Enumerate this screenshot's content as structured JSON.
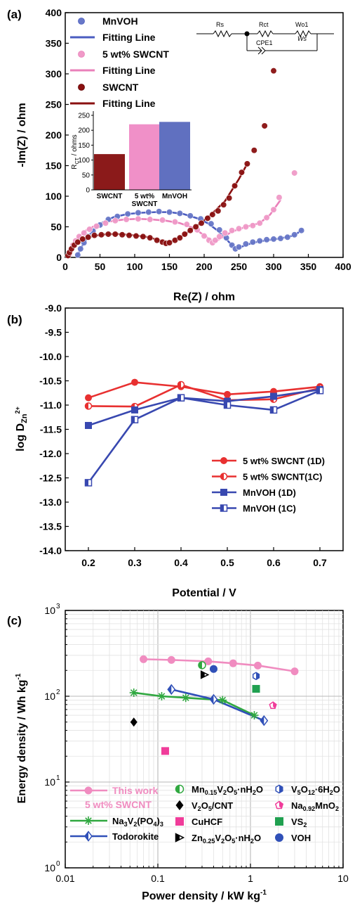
{
  "panels": {
    "a": {
      "label": "(a)"
    },
    "b": {
      "label": "(b)"
    },
    "c": {
      "label": "(c)"
    }
  },
  "circuit": {
    "labels": [
      "Rs",
      "Rct",
      "Wo1",
      "CPE1",
      "Ws"
    ]
  },
  "chart_data": [
    {
      "id": "a",
      "type": "scatter",
      "xlabel": "Re(Z) / ohm",
      "ylabel": "-Im(Z) / ohm",
      "xlim": [
        0,
        400
      ],
      "ylim": [
        0,
        400
      ],
      "xticks": [
        0,
        50,
        100,
        150,
        200,
        250,
        300,
        350,
        400
      ],
      "yticks": [
        0,
        50,
        100,
        150,
        200,
        250,
        300,
        350,
        400
      ],
      "legend": {
        "placement": "top-left",
        "entries": [
          "MnVOH",
          "Fitting Line",
          "5 wt% SWCNT",
          "Fitting Line",
          "SWCNT",
          "Fitting Line"
        ]
      },
      "series": [
        {
          "name": "MnVOH",
          "color": "#6878c8",
          "x": [
            18,
            22,
            27,
            33,
            40,
            50,
            62,
            75,
            90,
            105,
            120,
            135,
            150,
            165,
            180,
            195,
            210,
            222,
            232,
            240,
            245,
            250,
            260,
            270,
            280,
            290,
            300,
            310,
            320,
            330,
            340
          ],
          "y": [
            4,
            14,
            24,
            34,
            43,
            53,
            62,
            67,
            71,
            73,
            74,
            75,
            74,
            72,
            68,
            63,
            55,
            45,
            32,
            20,
            14,
            17,
            22,
            25,
            27,
            29,
            30,
            31,
            33,
            37,
            44
          ]
        },
        {
          "name": "MnVOH Fitting Line",
          "color": "#4a5cc0",
          "line": true,
          "x": [
            16,
            24,
            32,
            42,
            55,
            70,
            90,
            110,
            130,
            150,
            170,
            190,
            205,
            218,
            230,
            240,
            246,
            255,
            270,
            290,
            310,
            330,
            342
          ],
          "y": [
            0,
            18,
            33,
            46,
            58,
            66,
            71,
            73,
            74,
            74,
            71,
            64,
            56,
            45,
            32,
            20,
            15,
            18,
            24,
            28,
            31,
            36,
            46
          ]
        },
        {
          "name": "5 wt% SWCNT",
          "color": "#f09ac8",
          "x": [
            6,
            8,
            11,
            15,
            20,
            27,
            35,
            45,
            58,
            72,
            88,
            105,
            122,
            140,
            158,
            175,
            190,
            200,
            207,
            212,
            216,
            222,
            230,
            240,
            250,
            260,
            270,
            280,
            290,
            300,
            308,
            330
          ],
          "y": [
            5,
            12,
            20,
            27,
            34,
            40,
            46,
            51,
            56,
            60,
            62,
            63,
            62,
            61,
            58,
            54,
            45,
            35,
            28,
            24,
            28,
            34,
            40,
            44,
            47,
            50,
            52,
            56,
            65,
            78,
            98,
            138
          ]
        },
        {
          "name": "5 wt% SWCNT Fitting Line",
          "color": "#ea80ba",
          "line": true,
          "x": [
            4,
            10,
            18,
            30,
            45,
            65,
            85,
            105,
            125,
            145,
            165,
            185,
            200,
            210,
            215,
            222,
            240,
            260,
            280,
            295,
            310
          ],
          "y": [
            0,
            18,
            32,
            44,
            53,
            59,
            62,
            63,
            62,
            60,
            56,
            48,
            36,
            28,
            25,
            30,
            42,
            50,
            56,
            70,
            94
          ]
        },
        {
          "name": "SWCNT",
          "color": "#8a1010",
          "x": [
            4,
            6,
            9,
            13,
            18,
            25,
            33,
            42,
            52,
            62,
            72,
            82,
            92,
            102,
            112,
            122,
            132,
            140,
            145,
            150,
            158,
            165,
            172,
            180,
            188,
            196,
            205,
            212,
            220,
            228,
            236,
            244,
            254,
            262,
            272,
            287,
            300
          ],
          "y": [
            3,
            8,
            14,
            20,
            25,
            30,
            33,
            36,
            37,
            38,
            38,
            37,
            36,
            35,
            34,
            32,
            28,
            25,
            23,
            24,
            28,
            32,
            38,
            44,
            50,
            56,
            64,
            70,
            76,
            86,
            97,
            117,
            139,
            153,
            175,
            215,
            305
          ]
        },
        {
          "name": "SWCNT Fitting Line",
          "color": "#8a1010",
          "line": true,
          "x": [
            2,
            8,
            16,
            26,
            40,
            60,
            80,
            100,
            120,
            135,
            145,
            155,
            170,
            190,
            210,
            230,
            250,
            262
          ],
          "y": [
            0,
            12,
            22,
            30,
            35,
            38,
            38,
            36,
            33,
            28,
            25,
            27,
            36,
            52,
            70,
            92,
            128,
            153
          ]
        }
      ],
      "inset": {
        "type": "bar",
        "ylabel": "R",
        "ylabel_sub": "CT",
        "ylabel_rest": " / ohms",
        "ylim": [
          0,
          250
        ],
        "yticks": [
          0,
          50,
          100,
          150,
          200,
          250
        ],
        "categories": [
          "SWCNT",
          "5 wt%",
          "MnVOH"
        ],
        "cat_second_line": [
          "",
          "SWCNT",
          ""
        ],
        "values": [
          120,
          220,
          228
        ],
        "colors": [
          "#8b1a1a",
          "#f090c8",
          "#6070c0"
        ]
      }
    },
    {
      "id": "b",
      "type": "line",
      "xlabel": "Potential / V",
      "ylabel_main": "log D",
      "ylabel_sub": "Zn",
      "ylabel_sup": "2+",
      "xlim": [
        0.15,
        0.75
      ],
      "ylim": [
        -14.0,
        -9.0
      ],
      "xticks": [
        0.2,
        0.3,
        0.4,
        0.5,
        0.6,
        0.7
      ],
      "yticks": [
        -9.0,
        -9.5,
        -10.0,
        -10.5,
        -11.0,
        -11.5,
        -12.0,
        -12.5,
        -13.0,
        -13.5,
        -14.0
      ],
      "legend": {
        "placement": "bottom-right"
      },
      "series": [
        {
          "name": "5 wt% SWCNT (1D)",
          "color": "#e83030",
          "marker": "circle-full",
          "x": [
            0.2,
            0.3,
            0.4,
            0.5,
            0.6,
            0.7
          ],
          "y": [
            -10.85,
            -10.53,
            -10.62,
            -10.78,
            -10.72,
            -10.62
          ]
        },
        {
          "name": "5 wt% SWCNT(1C)",
          "color": "#e83030",
          "marker": "circle-half",
          "x": [
            0.2,
            0.3,
            0.4,
            0.5,
            0.6,
            0.7
          ],
          "y": [
            -11.02,
            -11.03,
            -10.58,
            -10.9,
            -10.88,
            -10.65
          ]
        },
        {
          "name": "MnVOH (1D)",
          "color": "#3848b0",
          "marker": "square-full",
          "x": [
            0.2,
            0.3,
            0.4,
            0.5,
            0.6,
            0.7
          ],
          "y": [
            -11.42,
            -11.1,
            -10.85,
            -10.92,
            -10.82,
            -10.68
          ]
        },
        {
          "name": "MnVOH (1C)",
          "color": "#3848b0",
          "marker": "square-half",
          "x": [
            0.2,
            0.3,
            0.4,
            0.5,
            0.6,
            0.7
          ],
          "y": [
            -12.6,
            -11.3,
            -10.85,
            -11.0,
            -11.1,
            -10.7
          ]
        }
      ]
    },
    {
      "id": "c",
      "type": "scatter",
      "xscale": "log",
      "yscale": "log",
      "xlabel_main": "Power density / kW kg",
      "xlabel_sup": "-1",
      "ylabel_main": "Energy density / Wh kg",
      "ylabel_sup": "-1",
      "xlim": [
        0.01,
        10
      ],
      "ylim": [
        1,
        1000
      ],
      "xticks": [
        "0.01",
        "0.1",
        "1",
        "10"
      ],
      "yticks": [
        {
          "base": "10",
          "exp": "0"
        },
        {
          "base": "10",
          "exp": "1"
        },
        {
          "base": "10",
          "exp": "2"
        },
        {
          "base": "10",
          "exp": "3"
        }
      ],
      "legend": {
        "placement": "bottom"
      },
      "series": [
        {
          "name": "This work",
          "name_line2": "5 wt% SWCNT",
          "color": "#f08cc0",
          "marker": "circle",
          "line": true,
          "x": [
            0.07,
            0.14,
            0.35,
            0.65,
            1.2,
            3.0
          ],
          "y": [
            270,
            265,
            255,
            242,
            228,
            195
          ]
        },
        {
          "name": "Na3V2(PO4)3",
          "rich": [
            [
              "Na",
              ""
            ],
            [
              "3",
              "sub"
            ],
            [
              "V",
              ""
            ],
            [
              "2",
              "sub"
            ],
            [
              "(PO",
              ""
            ],
            [
              "4",
              "sub"
            ],
            [
              ")",
              ""
            ],
            [
              "3",
              "sub"
            ]
          ],
          "color": "#30a840",
          "marker": "asterisk",
          "line": true,
          "x": [
            0.055,
            0.11,
            0.2,
            0.5,
            1.1
          ],
          "y": [
            110,
            100,
            96,
            90,
            60
          ]
        },
        {
          "name": "Todorokite",
          "color": "#3050b8",
          "marker": "diamond-half",
          "line": true,
          "x": [
            0.14,
            0.4,
            1.4
          ],
          "y": [
            120,
            92,
            52
          ]
        },
        {
          "name": "Mn0.15V2O5·nH2O",
          "rich": [
            [
              "Mn",
              ""
            ],
            [
              "0.15",
              "sub"
            ],
            [
              "V",
              ""
            ],
            [
              "2",
              "sub"
            ],
            [
              "O",
              ""
            ],
            [
              "5",
              "sub"
            ],
            [
              "·nH",
              ""
            ],
            [
              "2",
              "sub"
            ],
            [
              "O",
              ""
            ]
          ],
          "color": "#30a840",
          "marker": "circle-half",
          "x": [
            0.3
          ],
          "y": [
            230
          ]
        },
        {
          "name": "V2O5/CNT",
          "rich": [
            [
              "V",
              ""
            ],
            [
              "2",
              "sub"
            ],
            [
              "O",
              ""
            ],
            [
              "5",
              "sub"
            ],
            [
              "/CNT",
              ""
            ]
          ],
          "color": "#000000",
          "marker": "diamond",
          "x": [
            0.055
          ],
          "y": [
            50
          ]
        },
        {
          "name": "CuHCF",
          "color": "#f03c9a",
          "marker": "square",
          "x": [
            0.12
          ],
          "y": [
            23
          ]
        },
        {
          "name": "Zn0.25V2O5·nH2O",
          "rich": [
            [
              "Zn",
              ""
            ],
            [
              "0.25",
              "sub"
            ],
            [
              "V",
              ""
            ],
            [
              "2",
              "sub"
            ],
            [
              "O",
              ""
            ],
            [
              "5",
              "sub"
            ],
            [
              "·nH",
              ""
            ],
            [
              "2",
              "sub"
            ],
            [
              "O",
              ""
            ]
          ],
          "color": "#000000",
          "marker": "triangle-half",
          "x": [
            0.32
          ],
          "y": [
            178
          ]
        },
        {
          "name": "V5O12·6H2O",
          "rich": [
            [
              "V",
              ""
            ],
            [
              "5",
              "sub"
            ],
            [
              "O",
              ""
            ],
            [
              "12",
              "sub"
            ],
            [
              "·6H",
              ""
            ],
            [
              "2",
              "sub"
            ],
            [
              "O",
              ""
            ]
          ],
          "color": "#3050b8",
          "marker": "hexagon-half",
          "x": [
            1.15
          ],
          "y": [
            172
          ]
        },
        {
          "name": "Na0.92MnO2",
          "rich": [
            [
              "Na",
              ""
            ],
            [
              "0.92",
              "sub"
            ],
            [
              "MnO",
              ""
            ],
            [
              "2",
              "sub"
            ]
          ],
          "color": "#f03c9a",
          "marker": "pentagon-half",
          "x": [
            1.75
          ],
          "y": [
            78
          ]
        },
        {
          "name": "VS2",
          "rich": [
            [
              "VS",
              ""
            ],
            [
              "2",
              "sub"
            ]
          ],
          "color": "#20a050",
          "marker": "square",
          "x": [
            1.15
          ],
          "y": [
            122
          ]
        },
        {
          "name": "VOH",
          "color": "#3050b8",
          "marker": "circle",
          "x": [
            0.4
          ],
          "y": [
            208
          ]
        }
      ]
    }
  ]
}
